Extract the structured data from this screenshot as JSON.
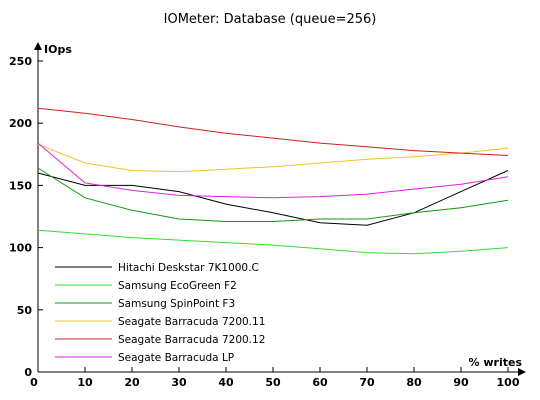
{
  "chart_data": {
    "type": "line",
    "title": "IOMeter: Database (queue=256)",
    "ylabel": "IOps",
    "xlabel": "% writes",
    "x": [
      0,
      10,
      20,
      30,
      40,
      50,
      60,
      70,
      80,
      90,
      100
    ],
    "xlim": [
      0,
      100
    ],
    "ylim": [
      0,
      250
    ],
    "xticks": [
      "0",
      "10",
      "20",
      "30",
      "40",
      "50",
      "60",
      "70",
      "80",
      "90",
      "100"
    ],
    "yticks": [
      "0",
      "50",
      "100",
      "150",
      "200",
      "250"
    ],
    "grid": false,
    "legend_position": "bottom-left",
    "series": [
      {
        "name": "Hitachi Deskstar 7K1000.C",
        "color": "#000000",
        "values": [
          160,
          150,
          150,
          145,
          135,
          128,
          120,
          118,
          128,
          145,
          162
        ]
      },
      {
        "name": "Samsung EcoGreen F2",
        "color": "#33dd33",
        "values": [
          114,
          111,
          108,
          106,
          104,
          102,
          99,
          96,
          95,
          97,
          100
        ]
      },
      {
        "name": "Samsung SpinPoint F3",
        "color": "#119911",
        "values": [
          164,
          140,
          130,
          123,
          121,
          121,
          123,
          123,
          128,
          132,
          138
        ]
      },
      {
        "name": "Seagate Barracuda 7200.11",
        "color": "#f0c030",
        "values": [
          183,
          168,
          162,
          161,
          163,
          165,
          168,
          171,
          173,
          176,
          180
        ]
      },
      {
        "name": "Seagate Barracuda 7200.12",
        "color": "#cc2222",
        "values": [
          212,
          208,
          203,
          197,
          192,
          188,
          184,
          181,
          178,
          176,
          174
        ]
      },
      {
        "name": "Seagate Barracuda LP",
        "color": "#dd22dd",
        "values": [
          184,
          152,
          146,
          142,
          141,
          140,
          141,
          143,
          147,
          151,
          157
        ]
      }
    ]
  }
}
